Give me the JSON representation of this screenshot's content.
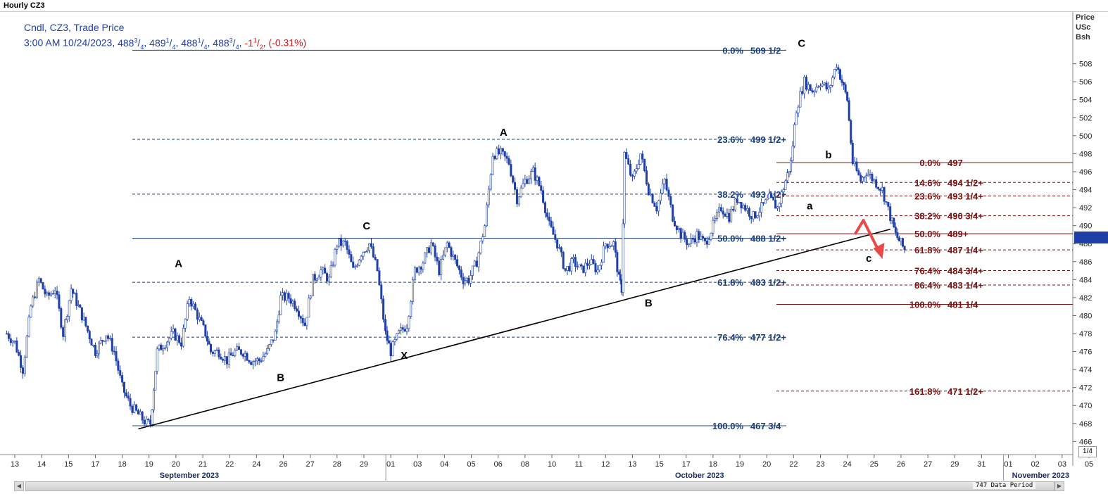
{
  "window_title": "Hourly CZ3",
  "header": {
    "line1": "Cndl, CZ3, Trade Price",
    "time": "3:00 AM 10/24/2023, ",
    "ohlc": [
      {
        "whole": "488",
        "num": "3",
        "den": "4"
      },
      {
        "whole": "489",
        "num": "1",
        "den": "4"
      },
      {
        "whole": "488",
        "num": "1",
        "den": "4"
      },
      {
        "whole": "488",
        "num": "3",
        "den": "4"
      }
    ],
    "change": {
      "whole": "-1",
      "num": "1",
      "den": "2"
    },
    "change_pct": "(-0.31%)"
  },
  "axis_unit": [
    "Price",
    "USc",
    "Bsh"
  ],
  "last_price_label": "",
  "page_indicator": "1/4",
  "data_period": "747 Data Period",
  "colors": {
    "candle": "#1f3fa8",
    "fib_primary": "#1a3f7a",
    "fib_secondary": "#7a1212",
    "trendline": "#000000",
    "arrow": "#e84a4a"
  },
  "chart_data": {
    "type": "candlestick",
    "ylim": [
      465,
      512
    ],
    "y_ticks": [
      466,
      468,
      470,
      472,
      474,
      476,
      478,
      480,
      482,
      484,
      486,
      488,
      490,
      492,
      494,
      496,
      498,
      500,
      502,
      504,
      506,
      508
    ],
    "x_tick_labels": [
      {
        "d": 0,
        "label": "13"
      },
      {
        "d": 1,
        "label": "14"
      },
      {
        "d": 2,
        "label": "15"
      },
      {
        "d": 3,
        "label": "17"
      },
      {
        "d": 4,
        "label": "18"
      },
      {
        "d": 5,
        "label": "19"
      },
      {
        "d": 6,
        "label": "20"
      },
      {
        "d": 7,
        "label": "21"
      },
      {
        "d": 8,
        "label": "22"
      },
      {
        "d": 9,
        "label": "24"
      },
      {
        "d": 10,
        "label": "26"
      },
      {
        "d": 11,
        "label": "27"
      },
      {
        "d": 12,
        "label": "28"
      },
      {
        "d": 13,
        "label": "29"
      },
      {
        "d": 14,
        "label": "01"
      },
      {
        "d": 15,
        "label": "03"
      },
      {
        "d": 16,
        "label": "04"
      },
      {
        "d": 17,
        "label": "05"
      },
      {
        "d": 18,
        "label": "06"
      },
      {
        "d": 19,
        "label": "08"
      },
      {
        "d": 20,
        "label": "10"
      },
      {
        "d": 21,
        "label": "11"
      },
      {
        "d": 22,
        "label": "12"
      },
      {
        "d": 23,
        "label": "13"
      },
      {
        "d": 24,
        "label": "15"
      },
      {
        "d": 25,
        "label": "17"
      },
      {
        "d": 26,
        "label": "18"
      },
      {
        "d": 27,
        "label": "19"
      },
      {
        "d": 28,
        "label": "20"
      },
      {
        "d": 29,
        "label": "22"
      },
      {
        "d": 30,
        "label": "23"
      },
      {
        "d": 31,
        "label": "24"
      },
      {
        "d": 32,
        "label": "25"
      },
      {
        "d": 33,
        "label": "26"
      },
      {
        "d": 34,
        "label": "27"
      },
      {
        "d": 35,
        "label": "29"
      },
      {
        "d": 36,
        "label": "31"
      },
      {
        "d": 37,
        "label": "01"
      },
      {
        "d": 38,
        "label": "02"
      },
      {
        "d": 39,
        "label": "03"
      },
      {
        "d": 40,
        "label": "05"
      }
    ],
    "month_labels": [
      {
        "d": 6.5,
        "label": "September 2023"
      },
      {
        "d": 25.5,
        "label": "October 2023"
      },
      {
        "d": 38.2,
        "label": "November 2023"
      }
    ],
    "month_separators": [
      14,
      37
    ],
    "price_path": [
      [
        -0.3,
        478
      ],
      [
        0,
        477
      ],
      [
        0.3,
        474
      ],
      [
        0.6,
        481
      ],
      [
        0.9,
        484
      ],
      [
        1.2,
        482
      ],
      [
        1.5,
        483
      ],
      [
        1.8,
        478
      ],
      [
        2.1,
        483
      ],
      [
        2.5,
        480
      ],
      [
        3.0,
        476
      ],
      [
        3.4,
        478
      ],
      [
        3.7,
        476
      ],
      [
        4.0,
        472
      ],
      [
        4.3,
        470
      ],
      [
        4.6,
        469
      ],
      [
        4.9,
        468
      ],
      [
        5.05,
        468
      ],
      [
        5.3,
        476
      ],
      [
        5.6,
        477
      ],
      [
        5.9,
        478
      ],
      [
        6.2,
        477
      ],
      [
        6.5,
        482
      ],
      [
        6.8,
        480
      ],
      [
        7.1,
        478
      ],
      [
        7.3,
        476
      ],
      [
        7.6,
        476
      ],
      [
        7.9,
        475
      ],
      [
        8.2,
        476
      ],
      [
        8.5,
        476
      ],
      [
        8.8,
        475
      ],
      [
        9.1,
        475
      ],
      [
        9.4,
        476
      ],
      [
        9.7,
        478
      ],
      [
        9.9,
        482
      ],
      [
        10.2,
        482
      ],
      [
        10.5,
        481
      ],
      [
        10.8,
        479
      ],
      [
        11.1,
        484
      ],
      [
        11.4,
        485
      ],
      [
        11.7,
        484
      ],
      [
        12.0,
        488
      ],
      [
        12.3,
        488
      ],
      [
        12.6,
        485
      ],
      [
        12.9,
        487
      ],
      [
        13.2,
        488
      ],
      [
        13.5,
        485
      ],
      [
        13.8,
        478
      ],
      [
        14.0,
        476
      ],
      [
        14.3,
        478
      ],
      [
        14.6,
        479
      ],
      [
        14.9,
        485
      ],
      [
        15.2,
        486
      ],
      [
        15.5,
        488
      ],
      [
        15.8,
        485
      ],
      [
        16.1,
        488
      ],
      [
        16.4,
        486
      ],
      [
        16.7,
        484
      ],
      [
        16.9,
        484
      ],
      [
        17.2,
        486
      ],
      [
        17.5,
        490
      ],
      [
        17.8,
        498
      ],
      [
        18.1,
        498
      ],
      [
        18.4,
        497
      ],
      [
        18.7,
        493
      ],
      [
        19.0,
        495
      ],
      [
        19.3,
        496
      ],
      [
        19.6,
        494
      ],
      [
        19.9,
        490
      ],
      [
        20.2,
        488
      ],
      [
        20.5,
        485
      ],
      [
        20.8,
        486
      ],
      [
        21.1,
        485
      ],
      [
        21.4,
        486
      ],
      [
        21.7,
        485
      ],
      [
        22.0,
        488
      ],
      [
        22.3,
        488
      ],
      [
        22.5,
        484
      ],
      [
        22.6,
        483
      ],
      [
        22.7,
        498
      ],
      [
        23.0,
        495
      ],
      [
        23.3,
        498
      ],
      [
        23.6,
        494
      ],
      [
        23.9,
        492
      ],
      [
        24.2,
        495
      ],
      [
        24.5,
        491
      ],
      [
        24.8,
        489
      ],
      [
        25.1,
        488
      ],
      [
        25.4,
        489
      ],
      [
        25.7,
        488
      ],
      [
        26.0,
        490
      ],
      [
        26.3,
        492
      ],
      [
        26.6,
        491
      ],
      [
        26.9,
        493
      ],
      [
        27.2,
        492
      ],
      [
        27.5,
        491
      ],
      [
        27.8,
        492
      ],
      [
        28.1,
        493
      ],
      [
        28.4,
        492
      ],
      [
        28.7,
        495
      ],
      [
        28.9,
        497
      ],
      [
        29.1,
        503
      ],
      [
        29.4,
        506
      ],
      [
        29.7,
        505
      ],
      [
        30.0,
        506
      ],
      [
        30.3,
        505
      ],
      [
        30.6,
        508
      ],
      [
        30.8,
        506
      ],
      [
        31.0,
        504
      ],
      [
        31.2,
        497
      ],
      [
        31.5,
        495
      ],
      [
        31.7,
        496
      ],
      [
        32.0,
        495
      ],
      [
        32.3,
        494
      ],
      [
        32.6,
        491
      ],
      [
        32.8,
        489
      ],
      [
        33.0,
        488
      ],
      [
        33.2,
        487
      ]
    ],
    "wave_labels": [
      {
        "text": "A",
        "x": 6.1,
        "y": 485.4
      },
      {
        "text": "B",
        "x": 9.9,
        "y": 472.7
      },
      {
        "text": "C",
        "x": 13.1,
        "y": 489.6
      },
      {
        "text": "X",
        "x": 14.5,
        "y": 475.2
      },
      {
        "text": "A",
        "x": 18.2,
        "y": 500.0
      },
      {
        "text": "B",
        "x": 23.6,
        "y": 481.0
      },
      {
        "text": "C",
        "x": 29.3,
        "y": 509.9
      },
      {
        "text": "a",
        "x": 29.6,
        "y": 491.8
      },
      {
        "text": "b",
        "x": 30.3,
        "y": 497.5
      },
      {
        "text": "c",
        "x": 31.8,
        "y": 486.0
      }
    ],
    "fib_primary": [
      {
        "ratio": "0.0%",
        "price": "509 1/2",
        "y": 509.5,
        "style": "solid"
      },
      {
        "ratio": "23.6%",
        "price": "499 1/2+",
        "y": 499.6,
        "style": "dash"
      },
      {
        "ratio": "38.2%",
        "price": "493 1/2+",
        "y": 493.5,
        "style": "dash"
      },
      {
        "ratio": "50.0%",
        "price": "488 1/2+",
        "y": 488.6,
        "style": "solid"
      },
      {
        "ratio": "61.8%",
        "price": "483 1/2+",
        "y": 483.7,
        "style": "dash"
      },
      {
        "ratio": "76.4%",
        "price": "477 1/2+",
        "y": 477.6,
        "style": "dash"
      },
      {
        "ratio": "100.0%",
        "price": "467 3/4",
        "y": 467.75,
        "style": "solid"
      }
    ],
    "fib_secondary": [
      {
        "ratio": "0.0%",
        "price": "497",
        "y": 497.0,
        "style": "solid"
      },
      {
        "ratio": "14.6%",
        "price": "494 1/2+",
        "y": 494.8,
        "style": "dash"
      },
      {
        "ratio": "23.6%",
        "price": "493 1/4+",
        "y": 493.3,
        "style": "dash"
      },
      {
        "ratio": "38.2%",
        "price": "490 3/4+",
        "y": 491.1,
        "style": "dash"
      },
      {
        "ratio": "50.0%",
        "price": "489+",
        "y": 489.1,
        "style": "solid"
      },
      {
        "ratio": "61.8%",
        "price": "487 1/4+",
        "y": 487.3,
        "style": "dash"
      },
      {
        "ratio": "76.4%",
        "price": "484 3/4+",
        "y": 485.0,
        "style": "dash"
      },
      {
        "ratio": "86.4%",
        "price": "483 1/4+",
        "y": 483.4,
        "style": "dash"
      },
      {
        "ratio": "100.0%",
        "price": "481 1/4",
        "y": 481.25,
        "style": "solid"
      },
      {
        "ratio": "161.8%",
        "price": "471 1/2+",
        "y": 471.6,
        "style": "dash"
      }
    ],
    "trendline": {
      "x1": 4.6,
      "y1": 467.4,
      "x2": 32.6,
      "y2": 489.6
    },
    "grid": false
  }
}
